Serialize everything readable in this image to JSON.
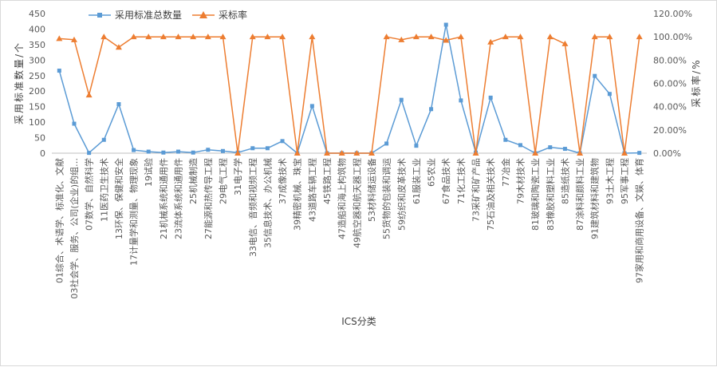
{
  "chart_data": {
    "type": "line",
    "xlabel": "ICS分类",
    "ylabel": "采用标准数量/个",
    "y2label": "采标率/%",
    "ylim": [
      0,
      450
    ],
    "y_ticks": [
      "0",
      "50",
      "100",
      "150",
      "200",
      "250",
      "300",
      "350",
      "400",
      "450"
    ],
    "y2lim": [
      0,
      120
    ],
    "y2_ticks": [
      "0.00%",
      "20.00%",
      "40.00%",
      "60.00%",
      "80.00%",
      "100.00%",
      "120.00%"
    ],
    "grid": false,
    "legend_position": "top",
    "categories": [
      "01综合、术语学、标准化、文献",
      "03社会学、服务、公司(企业)的组…",
      "07数学、自然科学",
      "11医药卫生技术",
      "13环保、保健和安全",
      "17计量学和测量、物理现象",
      "19试验",
      "21机械系统和通用件",
      "23流体系统和通用件",
      "25机械制造",
      "27能源和热传导工程",
      "29电气工程",
      "31电子学",
      "33电信、音频和视频工程",
      "35信息技术、办公机械",
      "37成像技术",
      "39精密机械、珠宝",
      "43道路车辆工程",
      "45铁路工程",
      "47造船和海上构筑物",
      "49航空器和航天器工程",
      "53材料储运设备",
      "55货物的包装和调运",
      "59纺织和皮革技术",
      "61服装工业",
      "65农业",
      "67食品技术",
      "71化工技术",
      "73采矿和矿产品",
      "75石油及相关技术",
      "77冶金",
      "79木材技术",
      "81玻璃和陶瓷工业",
      "83橡胶和塑料工业",
      "85造纸技术",
      "87涂料和颜料工业",
      "91建筑材料和建筑物",
      "93土木工程",
      "95军事工程",
      "97家用和商用设备、文娱、体育"
    ],
    "series": [
      {
        "name": "采用标准总数量",
        "axis": "left",
        "color": "#5b9bd5",
        "marker": "square",
        "values": [
          266,
          95,
          1,
          43,
          158,
          10,
          5,
          2,
          5,
          2,
          11,
          7,
          2,
          16,
          16,
          39,
          0,
          152,
          0,
          0,
          0,
          0,
          31,
          172,
          24,
          142,
          414,
          170,
          2,
          179,
          43,
          26,
          0,
          19,
          14,
          0,
          249,
          191,
          0,
          1
        ]
      },
      {
        "name": "采标率",
        "axis": "right",
        "color": "#ed7d31",
        "marker": "triangle",
        "values": [
          98.5,
          97.5,
          50,
          100,
          91,
          100,
          100,
          100,
          100,
          100,
          100,
          100,
          0,
          100,
          100,
          100,
          0,
          100,
          0,
          0,
          0,
          0,
          100,
          97.5,
          100,
          100,
          97,
          100,
          0,
          95.5,
          100,
          100,
          0,
          100,
          94,
          0,
          100,
          100,
          0,
          100
        ]
      }
    ]
  }
}
